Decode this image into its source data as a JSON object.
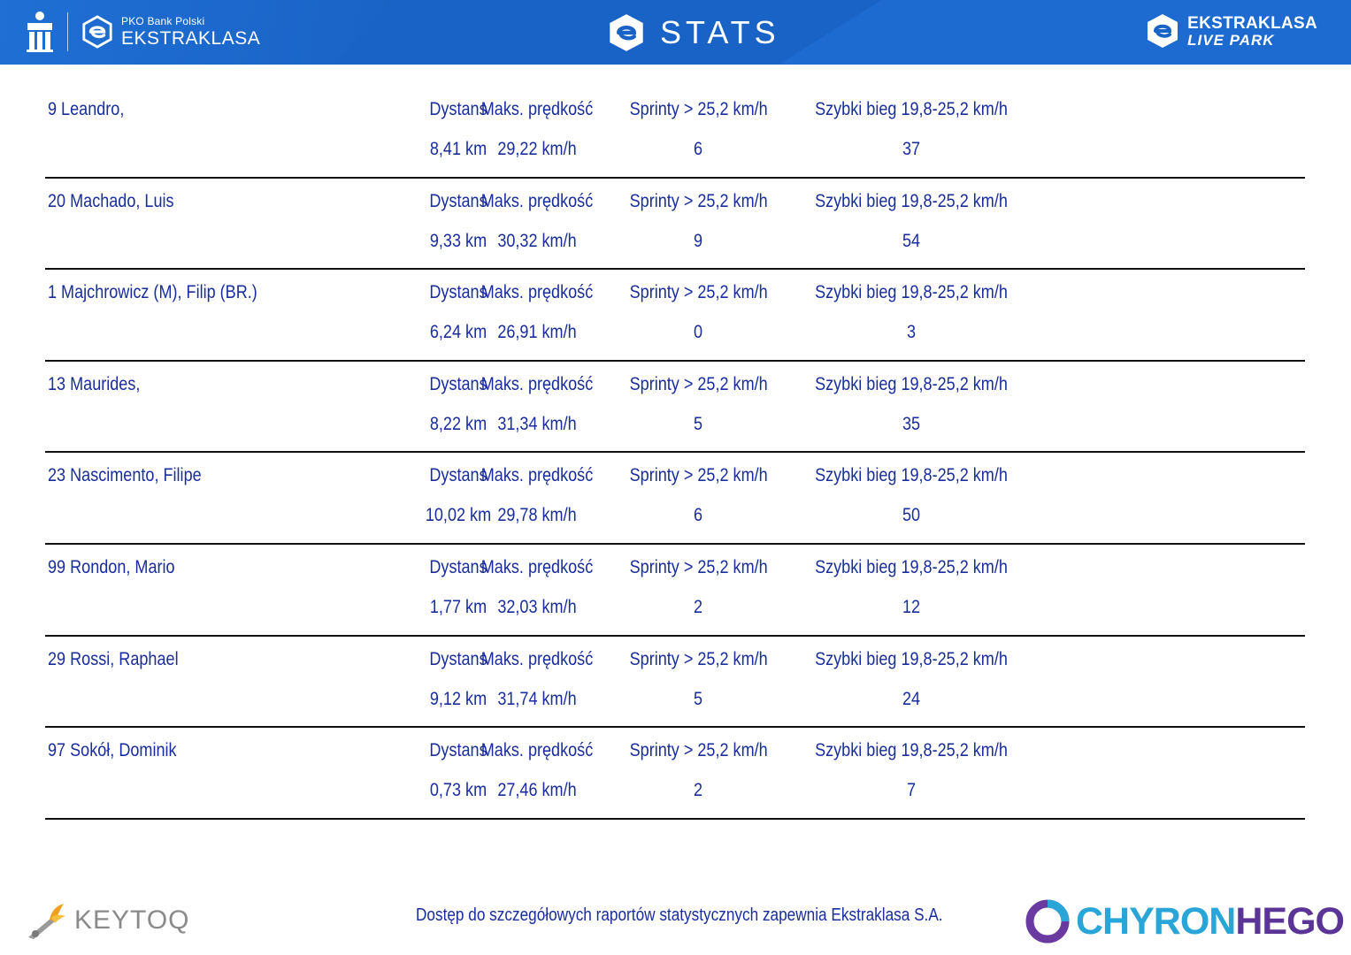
{
  "header": {
    "sponsor_small": "PKO Bank Polski",
    "sponsor_big": "EKSTRAKLASA",
    "title": "STATS",
    "right_logo_line1": "EKSTRAKLASA",
    "right_logo_line2": "LIVE PARK",
    "color_bar": "#1a63c6"
  },
  "players": [
    {
      "name": "9  Leandro,",
      "h1": "Dystans",
      "h2": "Maks. prędkość",
      "h3": "Sprinty > 25,2 km/h",
      "h4": "Szybki bieg 19,8-25,2 km/h",
      "v1": "8,41 km",
      "v2": "29,22 km/h",
      "v3": "6",
      "v4": "37"
    },
    {
      "name": "20  Machado, Luis",
      "h1": "Dystans",
      "h2": "Maks. prędkość",
      "h3": "Sprinty > 25,2 km/h",
      "h4": "Szybki bieg 19,8-25,2 km/h",
      "v1": "9,33 km",
      "v2": "30,32 km/h",
      "v3": "9",
      "v4": "54"
    },
    {
      "name": "1  Majchrowicz (M), Filip (BR.)",
      "h1": "Dystans",
      "h2": "Maks. prędkość",
      "h3": "Sprinty > 25,2 km/h",
      "h4": "Szybki bieg 19,8-25,2 km/h",
      "v1": "6,24 km",
      "v2": "26,91 km/h",
      "v3": "0",
      "v4": "3"
    },
    {
      "name": "13  Maurides,",
      "h1": "Dystans",
      "h2": "Maks. prędkość",
      "h3": "Sprinty > 25,2 km/h",
      "h4": "Szybki bieg 19,8-25,2 km/h",
      "v1": "8,22 km",
      "v2": "31,34 km/h",
      "v3": "5",
      "v4": "35"
    },
    {
      "name": "23  Nascimento, Filipe",
      "h1": "Dystans",
      "h2": "Maks. prędkość",
      "h3": "Sprinty > 25,2 km/h",
      "h4": "Szybki bieg 19,8-25,2 km/h",
      "v1": "10,02 km",
      "v2": "29,78 km/h",
      "v3": "6",
      "v4": "50"
    },
    {
      "name": "99  Rondon, Mario",
      "h1": "Dystans",
      "h2": "Maks. prędkość",
      "h3": "Sprinty > 25,2 km/h",
      "h4": "Szybki bieg 19,8-25,2 km/h",
      "v1": "1,77 km",
      "v2": "32,03 km/h",
      "v3": "2",
      "v4": "12"
    },
    {
      "name": "29  Rossi, Raphael",
      "h1": "Dystans",
      "h2": "Maks. prędkość",
      "h3": "Sprinty > 25,2 km/h",
      "h4": "Szybki bieg 19,8-25,2 km/h",
      "v1": "9,12 km",
      "v2": "31,74 km/h",
      "v3": "5",
      "v4": "24"
    },
    {
      "name": "97  Sokół, Dominik",
      "h1": "Dystans",
      "h2": "Maks. prędkość",
      "h3": "Sprinty > 25,2 km/h",
      "h4": "Szybki bieg 19,8-25,2 km/h",
      "v1": "0,73 km",
      "v2": "27,46 km/h",
      "v3": "2",
      "v4": "7"
    }
  ],
  "footer": {
    "note": "Dostęp do szczegółowych raportów statystycznych zapewnia Ekstraklasa S.A.",
    "keytoq": "KEYTOQ",
    "chyron_part1": "CHYRON",
    "chyron_part2": "HEGO"
  }
}
